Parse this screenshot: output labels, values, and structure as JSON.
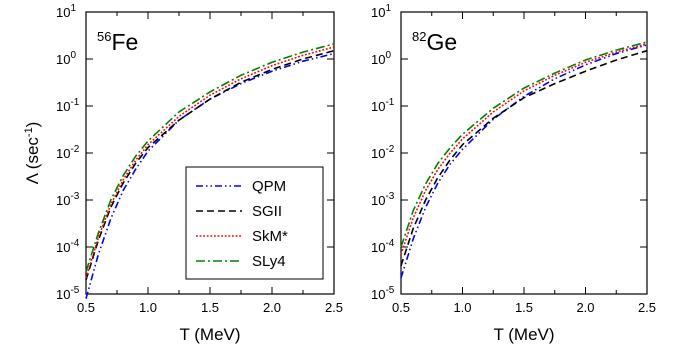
{
  "chart_data": [
    {
      "type": "line",
      "panel_label": {
        "superscript": "56",
        "element": "Fe"
      },
      "xlabel": "T (MeV)",
      "ylabel": "Λ (sec⁻¹)",
      "ylabel_main": "Λ (sec",
      "ylabel_sup": "-1",
      "ylabel_close": ")",
      "xlim": [
        0.5,
        2.5
      ],
      "ylim": [
        1e-05,
        10
      ],
      "yscale": "log",
      "grid": false,
      "legend_position": "lower-right",
      "x_ticks": [
        "0.5",
        "1.0",
        "1.5",
        "2.0",
        "2.5"
      ],
      "x_tick_values": [
        0.5,
        1.0,
        1.5,
        2.0,
        2.5
      ],
      "y_ticks": [
        {
          "base": "10",
          "exp": "-5"
        },
        {
          "base": "10",
          "exp": "-4"
        },
        {
          "base": "10",
          "exp": "-3"
        },
        {
          "base": "10",
          "exp": "-2"
        },
        {
          "base": "10",
          "exp": "-1"
        },
        {
          "base": "10",
          "exp": "0"
        },
        {
          "base": "10",
          "exp": "1"
        }
      ],
      "y_tick_values": [
        1e-05,
        0.0001,
        0.001,
        0.01,
        0.1,
        1,
        10
      ],
      "x": [
        0.5,
        0.6,
        0.7,
        0.8,
        0.9,
        1.0,
        1.25,
        1.5,
        1.75,
        2.0,
        2.25,
        2.5
      ],
      "series": [
        {
          "name": "QPM",
          "color": "#0000ff",
          "dash": "dash-dot-dot",
          "values": [
            8e-06,
            7e-05,
            0.0004,
            0.0016,
            0.0045,
            0.011,
            0.05,
            0.14,
            0.3,
            0.55,
            0.9,
            1.3
          ]
        },
        {
          "name": "SGII",
          "color": "#000000",
          "dash": "dash",
          "values": [
            2e-05,
            0.00014,
            0.0007,
            0.0023,
            0.006,
            0.013,
            0.05,
            0.14,
            0.32,
            0.6,
            1.0,
            1.5
          ]
        },
        {
          "name": "SkM*",
          "color": "#ff0000",
          "dash": "dot",
          "values": [
            2.2e-05,
            0.00016,
            0.0008,
            0.0027,
            0.007,
            0.015,
            0.06,
            0.17,
            0.38,
            0.72,
            1.2,
            1.8
          ]
        },
        {
          "name": "SLy4",
          "color": "#008000",
          "dash": "dash-dot",
          "values": [
            3e-05,
            0.0002,
            0.001,
            0.0033,
            0.0085,
            0.018,
            0.075,
            0.2,
            0.45,
            0.85,
            1.4,
            2.1
          ]
        }
      ]
    },
    {
      "type": "line",
      "panel_label": {
        "superscript": "82",
        "element": "Ge"
      },
      "xlabel": "T (MeV)",
      "xlim": [
        0.5,
        2.5
      ],
      "ylim": [
        1e-05,
        10
      ],
      "yscale": "log",
      "grid": false,
      "x_ticks": [
        "0.5",
        "1.0",
        "1.5",
        "2.0",
        "2.5"
      ],
      "x_tick_values": [
        0.5,
        1.0,
        1.5,
        2.0,
        2.5
      ],
      "y_ticks": [
        {
          "base": "10",
          "exp": "-5"
        },
        {
          "base": "10",
          "exp": "-4"
        },
        {
          "base": "10",
          "exp": "-3"
        },
        {
          "base": "10",
          "exp": "-2"
        },
        {
          "base": "10",
          "exp": "-1"
        },
        {
          "base": "10",
          "exp": "0"
        },
        {
          "base": "10",
          "exp": "1"
        }
      ],
      "y_tick_values": [
        1e-05,
        0.0001,
        0.001,
        0.01,
        0.1,
        1,
        10
      ],
      "x": [
        0.5,
        0.6,
        0.7,
        0.8,
        0.9,
        1.0,
        1.25,
        1.5,
        1.75,
        2.0,
        2.25,
        2.5
      ],
      "series": [
        {
          "name": "QPM",
          "color": "#0000ff",
          "dash": "dash-dot-dot",
          "values": [
            2.2e-05,
            0.00015,
            0.0007,
            0.0023,
            0.0058,
            0.012,
            0.052,
            0.16,
            0.38,
            0.75,
            1.3,
            2.0
          ]
        },
        {
          "name": "SGII",
          "color": "#000000",
          "dash": "dash",
          "values": [
            4e-05,
            0.00025,
            0.001,
            0.003,
            0.0072,
            0.015,
            0.055,
            0.15,
            0.3,
            0.55,
            0.95,
            1.5
          ]
        },
        {
          "name": "SkM*",
          "color": "#ff0000",
          "dash": "dot",
          "values": [
            7e-05,
            0.00042,
            0.0016,
            0.0045,
            0.01,
            0.02,
            0.075,
            0.21,
            0.45,
            0.85,
            1.4,
            2.1
          ]
        },
        {
          "name": "SLy4",
          "color": "#008000",
          "dash": "dash-dot",
          "values": [
            0.0001,
            0.0006,
            0.0022,
            0.006,
            0.013,
            0.025,
            0.09,
            0.24,
            0.5,
            0.95,
            1.55,
            2.3
          ]
        }
      ]
    }
  ]
}
